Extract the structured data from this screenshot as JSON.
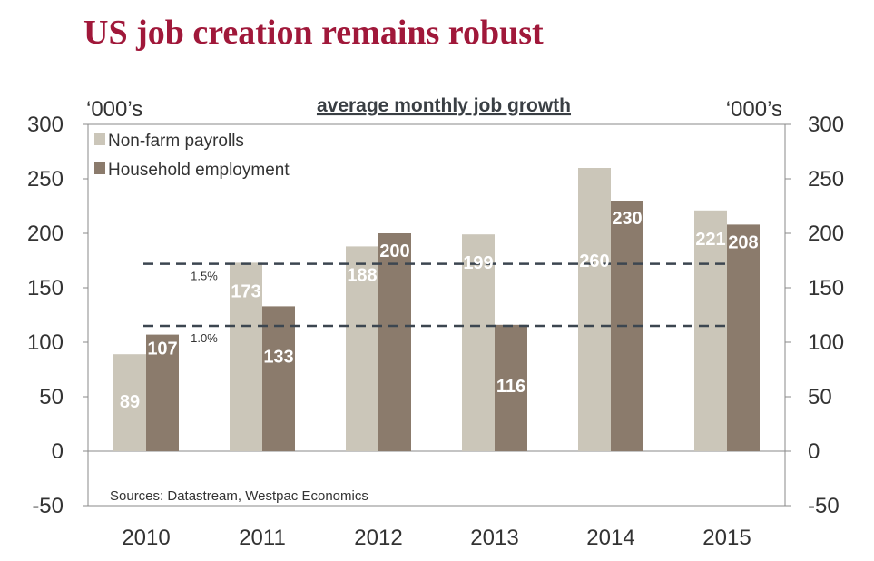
{
  "title": "US job creation remains robust",
  "colors": {
    "title": "#a0183a",
    "nfp": "#cbc6b9",
    "household": "#8b7b6c",
    "dashed": "#3c4650",
    "text": "#333333"
  },
  "chart_data": {
    "type": "bar",
    "title": "average monthly job growth",
    "ylabel_left": "‘000’s",
    "ylabel_right": "‘000’s",
    "categories": [
      "2010",
      "2011",
      "2012",
      "2013",
      "2014",
      "2015"
    ],
    "series": [
      {
        "name": "Non-farm payrolls",
        "values": [
          89,
          173,
          188,
          199,
          260,
          221
        ],
        "labels": [
          "89",
          "173",
          "188",
          "199",
          "260",
          "221"
        ]
      },
      {
        "name": "Household employment",
        "values": [
          107,
          133,
          200,
          116,
          230,
          208
        ],
        "labels": [
          "107",
          "133",
          "200",
          "116",
          "230",
          "208"
        ]
      }
    ],
    "ylim": [
      -50,
      300
    ],
    "yticks": [
      -50,
      0,
      50,
      100,
      150,
      200,
      250,
      300
    ],
    "ytick_labels": [
      "-50",
      "0",
      "50",
      "100",
      "150",
      "200",
      "250",
      "300"
    ],
    "reference_lines": [
      {
        "value": 172,
        "label": "1.5%"
      },
      {
        "value": 115,
        "label": "1.0%"
      }
    ],
    "legend_position": "top-left",
    "source": "Sources: Datastream, Westpac Economics",
    "grid": false
  }
}
